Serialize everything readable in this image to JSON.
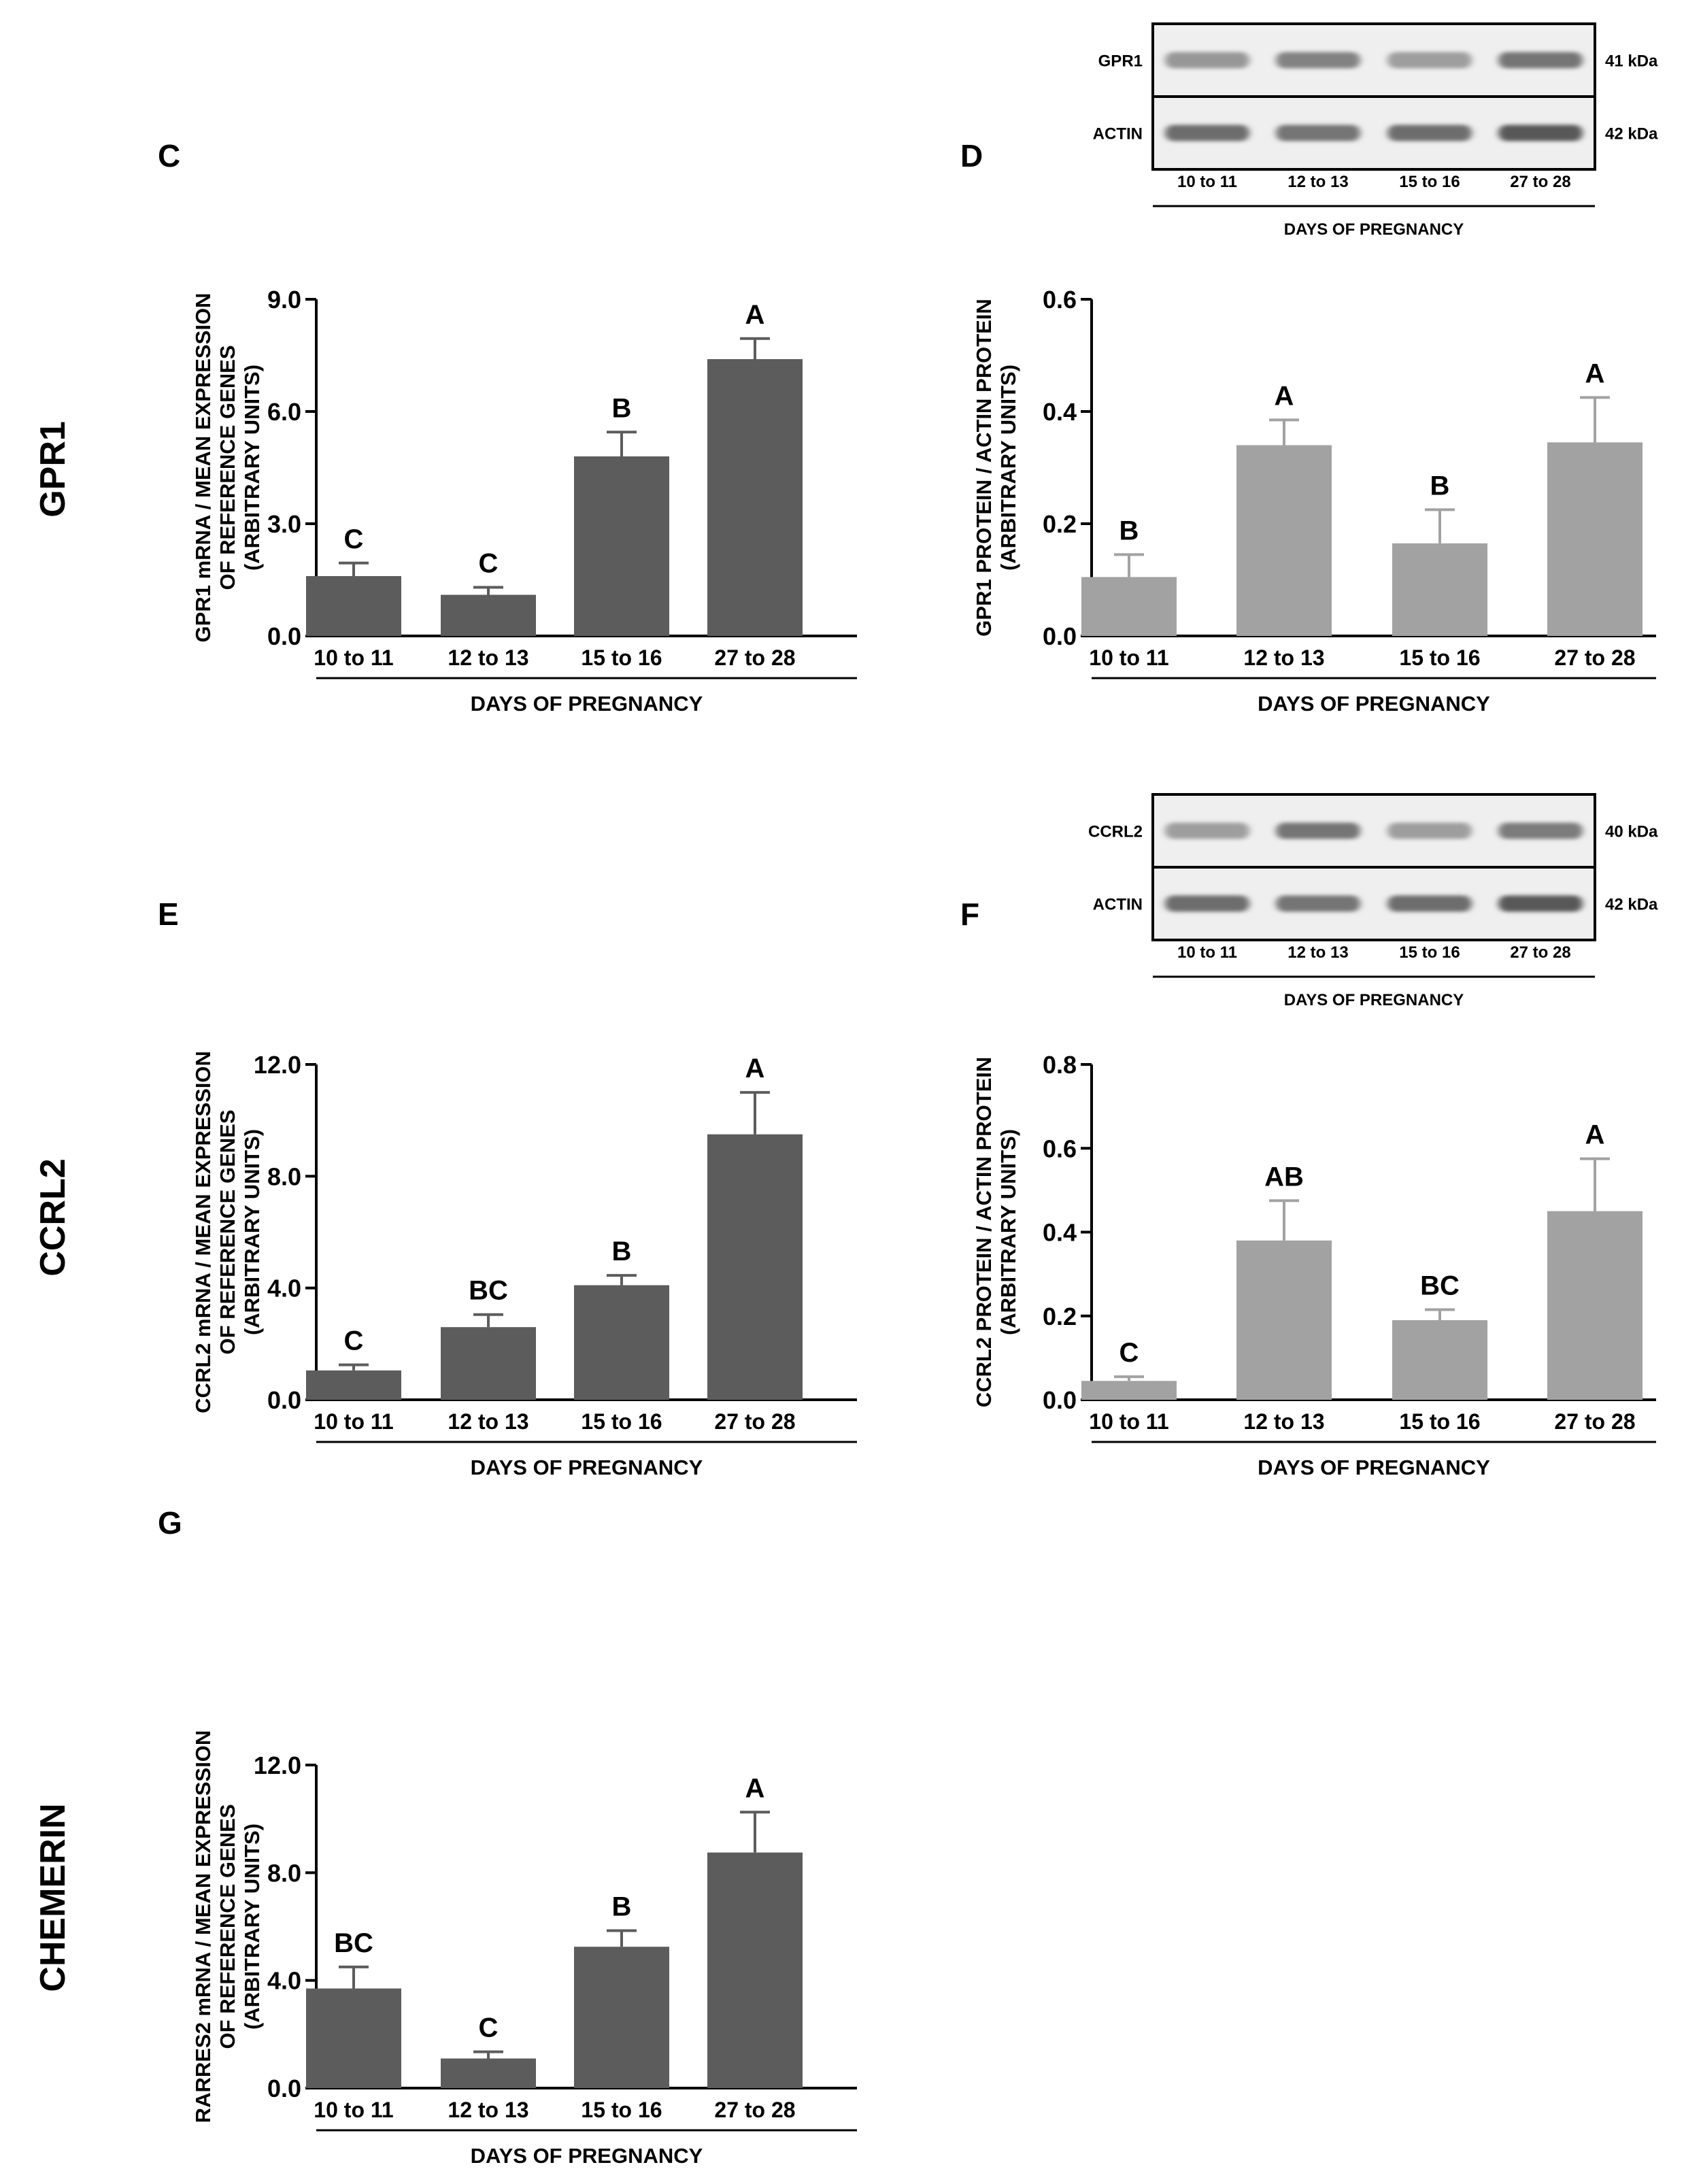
{
  "rows": [
    {
      "label": "GPR1"
    },
    {
      "label": "CCRL2"
    },
    {
      "label": "CHEMERIN"
    }
  ],
  "blots": [
    {
      "panel": "D",
      "lanes": [
        "10 to 11",
        "12 to 13",
        "15 to 16",
        "27 to 28"
      ],
      "xtitle": "DAYS OF PREGNANCY",
      "bands": [
        {
          "name": "GPR1",
          "kda": "41 kDa",
          "intensity": [
            0.35,
            0.5,
            0.3,
            0.6
          ]
        },
        {
          "name": "ACTIN",
          "kda": "42 kDa",
          "intensity": [
            0.65,
            0.6,
            0.65,
            0.8
          ]
        }
      ]
    },
    {
      "panel": "F",
      "lanes": [
        "10 to 11",
        "12 to 13",
        "15 to 16",
        "27 to 28"
      ],
      "xtitle": "DAYS OF PREGNANCY",
      "bands": [
        {
          "name": "CCRL2",
          "kda": "40 kDa",
          "intensity": [
            0.3,
            0.6,
            0.3,
            0.55
          ]
        },
        {
          "name": "ACTIN",
          "kda": "42 kDa",
          "intensity": [
            0.65,
            0.6,
            0.65,
            0.8
          ]
        }
      ]
    }
  ],
  "chart_data": [
    {
      "panel": "C",
      "type": "bar",
      "series_color": "#5c5c5c",
      "categories": [
        "10 to 11",
        "12 to 13",
        "15 to 16",
        "27 to 28"
      ],
      "values": [
        1.6,
        1.1,
        4.8,
        7.4
      ],
      "errors": [
        0.35,
        0.2,
        0.65,
        0.55
      ],
      "letters": [
        "C",
        "C",
        "B",
        "A"
      ],
      "ylim": [
        0,
        9.0
      ],
      "yticks": [
        "0.0",
        "3.0",
        "6.0",
        "9.0"
      ],
      "ylabel": [
        "GPR1 mRNA / MEAN EXPRESSION",
        "OF REFERENCE GENES",
        "(ARBITRARY UNITS)"
      ],
      "xlabel": "DAYS OF PREGNANCY"
    },
    {
      "panel": "D",
      "type": "bar",
      "series_color": "#a2a2a2",
      "categories": [
        "10 to 11",
        "12 to 13",
        "15 to 16",
        "27 to 28"
      ],
      "values": [
        0.105,
        0.34,
        0.165,
        0.345
      ],
      "errors": [
        0.04,
        0.045,
        0.06,
        0.08
      ],
      "letters": [
        "B",
        "A",
        "B",
        "A"
      ],
      "ylim": [
        0,
        0.6
      ],
      "yticks": [
        "0.0",
        "0.2",
        "0.4",
        "0.6"
      ],
      "ylabel": [
        "GPR1 PROTEIN / ACTIN PROTEIN",
        "(ARBITRARY UNITS)"
      ],
      "xlabel": "DAYS OF PREGNANCY"
    },
    {
      "panel": "E",
      "type": "bar",
      "series_color": "#5c5c5c",
      "categories": [
        "10 to 11",
        "12 to 13",
        "15 to 16",
        "27 to 28"
      ],
      "values": [
        1.05,
        2.6,
        4.1,
        9.5
      ],
      "errors": [
        0.2,
        0.45,
        0.35,
        1.5
      ],
      "letters": [
        "C",
        "BC",
        "B",
        "A"
      ],
      "ylim": [
        0,
        12.0
      ],
      "yticks": [
        "0.0",
        "4.0",
        "8.0",
        "12.0"
      ],
      "ylabel": [
        "CCRL2 mRNA / MEAN EXPRESSION",
        "OF REFERENCE GENES",
        "(ARBITRARY UNITS)"
      ],
      "xlabel": "DAYS OF PREGNANCY"
    },
    {
      "panel": "F",
      "type": "bar",
      "series_color": "#a2a2a2",
      "categories": [
        "10 to 11",
        "12 to 13",
        "15 to 16",
        "27 to 28"
      ],
      "values": [
        0.045,
        0.38,
        0.19,
        0.45
      ],
      "errors": [
        0.01,
        0.095,
        0.025,
        0.125
      ],
      "letters": [
        "C",
        "AB",
        "BC",
        "A"
      ],
      "ylim": [
        0,
        0.8
      ],
      "yticks": [
        "0.0",
        "0.2",
        "0.4",
        "0.6",
        "0.8"
      ],
      "ylabel": [
        "CCRL2 PROTEIN / ACTIN PROTEIN",
        "(ARBITRARY UNITS)"
      ],
      "xlabel": "DAYS OF PREGNANCY"
    },
    {
      "panel": "G",
      "type": "bar",
      "series_color": "#5c5c5c",
      "categories": [
        "10 to 11",
        "12 to 13",
        "15 to 16",
        "27 to 28"
      ],
      "values": [
        3.7,
        1.1,
        5.25,
        8.75
      ],
      "errors": [
        0.8,
        0.25,
        0.6,
        1.5
      ],
      "letters": [
        "BC",
        "C",
        "B",
        "A"
      ],
      "ylim": [
        0,
        12.0
      ],
      "yticks": [
        "0.0",
        "4.0",
        "8.0",
        "12.0"
      ],
      "ylabel": [
        "RARRES2 mRNA / MEAN EXPRESSION",
        "OF REFERENCE GENES",
        "(ARBITRARY UNITS)"
      ],
      "xlabel": "DAYS OF PREGNANCY"
    }
  ]
}
